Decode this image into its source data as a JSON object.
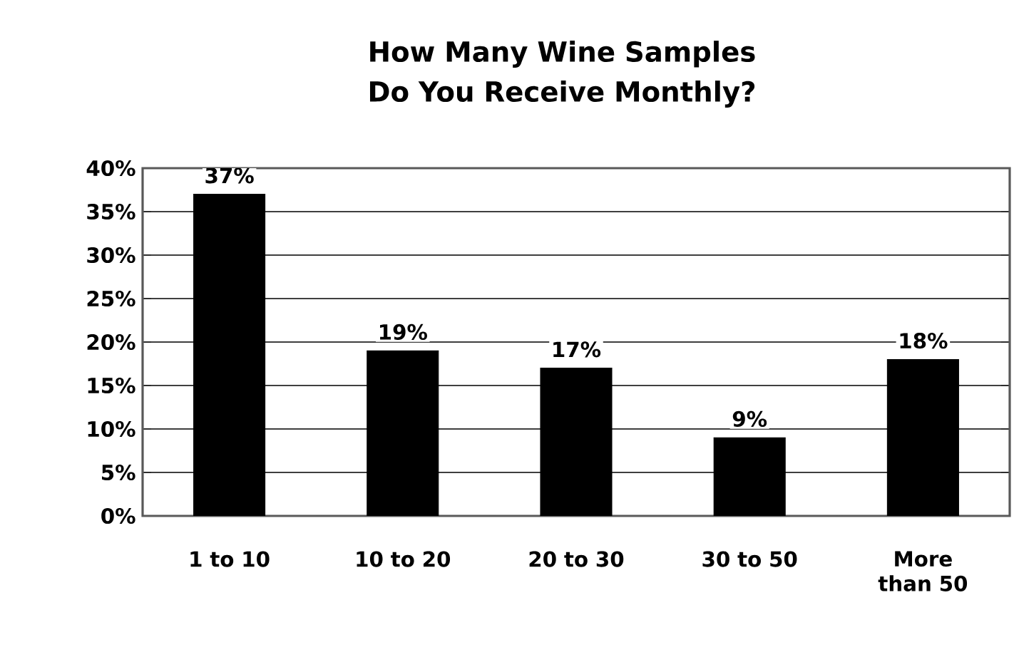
{
  "chart_data": {
    "type": "bar",
    "title": "How Many Wine Samples Do You Receive Monthly?",
    "categories": [
      "1 to 10",
      "10 to 20",
      "20 to 30",
      "30 to 50",
      "More than 50"
    ],
    "values": [
      37,
      19,
      17,
      9,
      18
    ],
    "value_labels": [
      "37%",
      "19%",
      "17%",
      "9%",
      "18%"
    ],
    "color": "#000000",
    "ylim": [
      0,
      40
    ],
    "yticks": [
      {
        "value": 0,
        "label": "0%"
      },
      {
        "value": 5,
        "label": "5%"
      },
      {
        "value": 10,
        "label": "10%"
      },
      {
        "value": 15,
        "label": "15%"
      },
      {
        "value": 20,
        "label": "20%"
      },
      {
        "value": 25,
        "label": "25%"
      },
      {
        "value": 30,
        "label": "30%"
      },
      {
        "value": 35,
        "label": "35%"
      },
      {
        "value": 40,
        "label": "40%"
      }
    ],
    "grid": "y"
  }
}
